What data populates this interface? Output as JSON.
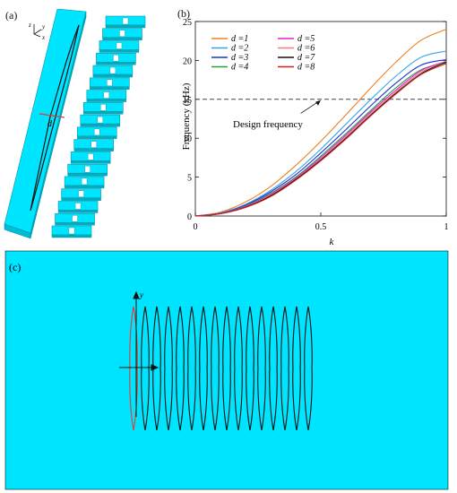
{
  "panels": {
    "a": {
      "label": "(a)",
      "axis_y": "y",
      "axis_x": "x",
      "axis_z": "z",
      "dim_label": "d"
    },
    "b": {
      "label": "(b)"
    },
    "c": {
      "label": "(c)",
      "axis_y": "y"
    }
  },
  "colors": {
    "cyan": "#00E5FF",
    "cyan_side": "#00BCD4",
    "cyan_top": "#7FF5FF",
    "slot_red": "#E53935"
  },
  "chart_data": {
    "type": "line",
    "title": "",
    "xlabel": "k",
    "ylabel": "Frequency (kHz)",
    "xlim": [
      0,
      1
    ],
    "ylim": [
      0,
      25
    ],
    "xticks": [
      0,
      0.5,
      1
    ],
    "xtick_labels": [
      "0",
      "0.5",
      "1"
    ],
    "yticks": [
      0,
      5,
      10,
      15,
      20,
      25
    ],
    "ytick_labels": [
      "0",
      "5",
      "10",
      "15",
      "20",
      "25"
    ],
    "legend_placement": "top-left",
    "grid": false,
    "annotation": {
      "text": "Design frequency",
      "target_x": 0.5,
      "target_y": 15
    },
    "reference_line": {
      "y": 15,
      "style": "dashed",
      "color": "#444444"
    },
    "x": [
      0,
      0.1,
      0.2,
      0.3,
      0.4,
      0.5,
      0.6,
      0.7,
      0.8,
      0.9,
      1.0
    ],
    "series": [
      {
        "name": "d =1",
        "color": "#F08020",
        "values": [
          0,
          0.5,
          1.8,
          3.8,
          6.5,
          9.6,
          13.0,
          16.5,
          19.8,
          22.6,
          24.0
        ]
      },
      {
        "name": "d =2",
        "color": "#30A8E8",
        "values": [
          0,
          0.4,
          1.5,
          3.3,
          5.7,
          8.6,
          11.8,
          15.0,
          18.0,
          20.4,
          21.2
        ]
      },
      {
        "name": "d =3",
        "color": "#2030C8",
        "values": [
          0,
          0.35,
          1.4,
          3.1,
          5.3,
          8.1,
          11.1,
          14.2,
          17.1,
          19.4,
          20.1
        ]
      },
      {
        "name": "d =4",
        "color": "#20A050",
        "values": [
          0,
          0.33,
          1.3,
          2.9,
          5.0,
          7.7,
          10.6,
          13.6,
          16.5,
          18.8,
          19.7
        ]
      },
      {
        "name": "d =5",
        "color": "#E020D0",
        "values": [
          0,
          0.32,
          1.25,
          2.8,
          4.9,
          7.5,
          10.4,
          13.4,
          16.2,
          18.7,
          19.9
        ]
      },
      {
        "name": "d =6",
        "color": "#F08080",
        "values": [
          0,
          0.31,
          1.2,
          2.7,
          4.8,
          7.3,
          10.2,
          13.2,
          16.0,
          18.5,
          19.9
        ]
      },
      {
        "name": "d =7",
        "color": "#111111",
        "values": [
          0,
          0.3,
          1.15,
          2.6,
          4.7,
          7.2,
          10.0,
          13.0,
          15.8,
          18.3,
          19.8
        ]
      },
      {
        "name": "d =8",
        "color": "#D02020",
        "values": [
          0,
          0.29,
          1.1,
          2.5,
          4.6,
          7.1,
          9.9,
          12.9,
          15.7,
          18.2,
          19.6
        ]
      }
    ]
  }
}
